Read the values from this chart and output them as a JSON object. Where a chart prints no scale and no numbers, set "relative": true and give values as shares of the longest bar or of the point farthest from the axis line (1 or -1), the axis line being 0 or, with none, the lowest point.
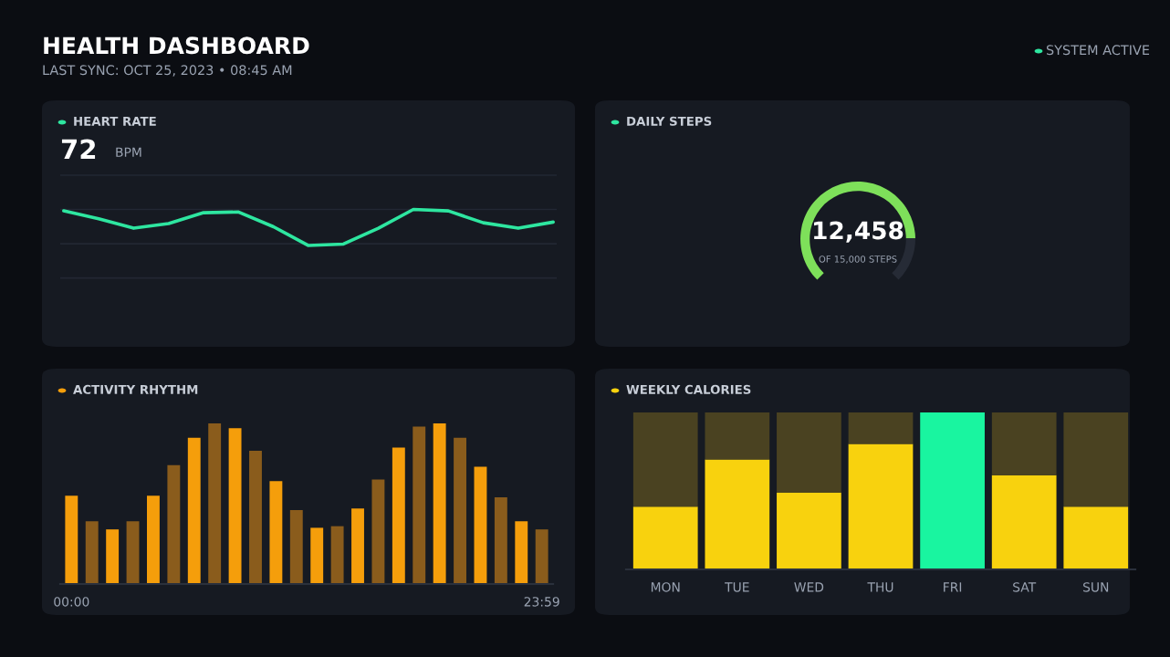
{
  "chart_data": [
    {
      "type": "other",
      "title": "HEALTH DASHBOARD",
      "subtitle": "LAST SYNC: OCT 25, 2023 • 08:45 AM",
      "annotations": [
        "SYSTEM ACTIVE"
      ]
    },
    {
      "type": "line",
      "title": "HEART RATE",
      "annotations": [
        "72",
        "BPM"
      ],
      "relative": true,
      "categories": [
        null,
        null,
        null,
        null,
        null,
        null,
        null,
        null,
        null,
        null,
        null,
        null,
        null,
        null,
        null
      ],
      "series": [
        {
          "color": "#2ee6a0",
          "values": [
            0.96,
            0.74,
            0.48,
            0.61,
            0.91,
            0.93,
            0.52,
            0.0,
            0.04,
            0.48,
            1.0,
            0.96,
            0.63,
            0.48,
            0.65
          ]
        }
      ]
    },
    {
      "type": "donut",
      "title": "DAILY STEPS",
      "annotations": [
        "12,458",
        "OF 15,000 STEPS"
      ],
      "categories": [
        null,
        null
      ],
      "values": [
        83.05,
        16.95
      ],
      "colors": [
        "#7ee05a",
        "#262b36"
      ]
    },
    {
      "type": "bar",
      "title": "ACTIVITY RHYTHM",
      "relative": true,
      "categories": [
        "00:00",
        null,
        null,
        null,
        null,
        null,
        null,
        null,
        null,
        null,
        null,
        null,
        null,
        null,
        null,
        null,
        null,
        null,
        null,
        null,
        null,
        null,
        null,
        "23:59"
      ],
      "values": [
        0.55,
        0.39,
        0.34,
        0.39,
        0.55,
        0.74,
        0.91,
        1.0,
        0.97,
        0.83,
        0.64,
        0.46,
        0.35,
        0.36,
        0.47,
        0.65,
        0.85,
        0.98,
        1.0,
        0.91,
        0.73,
        0.54,
        0.39,
        0.34
      ],
      "colors": [
        "#f59e0b",
        "#8a5c1c",
        "#f59e0b",
        "#8a5c1c",
        "#f59e0b",
        "#8a5c1c",
        "#f59e0b",
        "#8a5c1c",
        "#f59e0b",
        "#8a5c1c",
        "#f59e0b",
        "#8a5c1c",
        "#f59e0b",
        "#8a5c1c",
        "#f59e0b",
        "#8a5c1c",
        "#f59e0b",
        "#8a5c1c",
        "#f59e0b",
        "#8a5c1c",
        "#f59e0b",
        "#8a5c1c",
        "#f59e0b",
        "#8a5c1c"
      ]
    },
    {
      "type": "bar",
      "title": "WEEKLY CALORIES",
      "relative": true,
      "stacked": true,
      "categories": [
        "MON",
        "TUE",
        "WED",
        "THU",
        "FRI",
        "SAT",
        "SUN"
      ],
      "series": [
        {
          "colors": [
            "#f8d20e",
            "#f8d20e",
            "#f8d20e",
            "#f8d20e",
            "#19f5a0",
            "#f8d20e",
            "#f8d20e"
          ],
          "values": [
            0.4,
            0.7,
            0.49,
            0.8,
            1.0,
            0.6,
            0.4
          ]
        },
        {
          "color": "#4a4221",
          "values": [
            0.6,
            0.3,
            0.51,
            0.2,
            0.0,
            0.4,
            0.6
          ]
        }
      ]
    }
  ]
}
